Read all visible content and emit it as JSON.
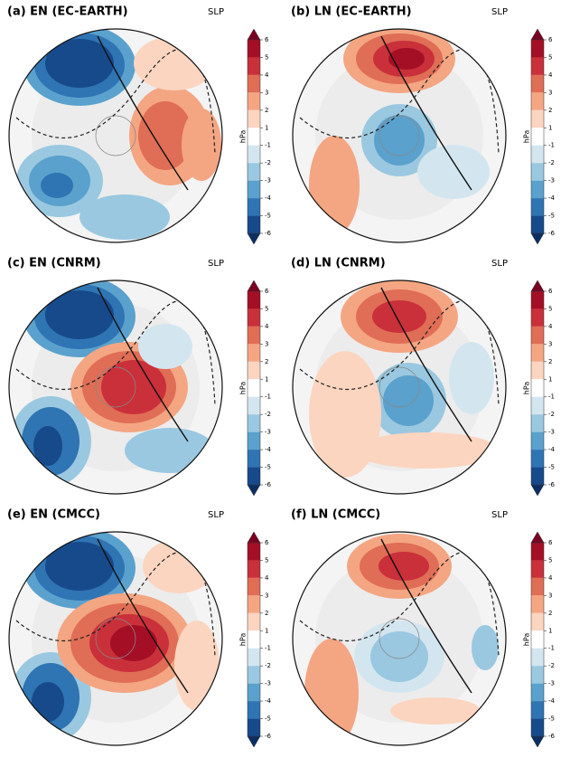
{
  "panels": [
    {
      "title": "(a) EN (EC-EARTH)",
      "variable": "SLP"
    },
    {
      "title": "(b) LN (EC-EARTH)",
      "variable": "SLP"
    },
    {
      "title": "(c) EN (CNRM)",
      "variable": "SLP"
    },
    {
      "title": "(d) LN (CNRM)",
      "variable": "SLP"
    },
    {
      "title": "(e) EN (CMCC)",
      "variable": "SLP"
    },
    {
      "title": "(f) LN (CMCC)",
      "variable": "SLP"
    }
  ],
  "colorbar": {
    "label": "hPa",
    "ticks": [
      6,
      5,
      4,
      3,
      2,
      1,
      -1,
      -2,
      -3,
      -4,
      -5,
      -6
    ],
    "colors": [
      "#a50f26",
      "#c9303a",
      "#e06d55",
      "#f4a582",
      "#fbd5c0",
      "#ffffff",
      "#d3e6f0",
      "#9ac8e0",
      "#5aa1cd",
      "#2f74b3",
      "#174a8b"
    ],
    "extend_colors": [
      "#7a0021",
      "#0b2f63"
    ]
  }
}
